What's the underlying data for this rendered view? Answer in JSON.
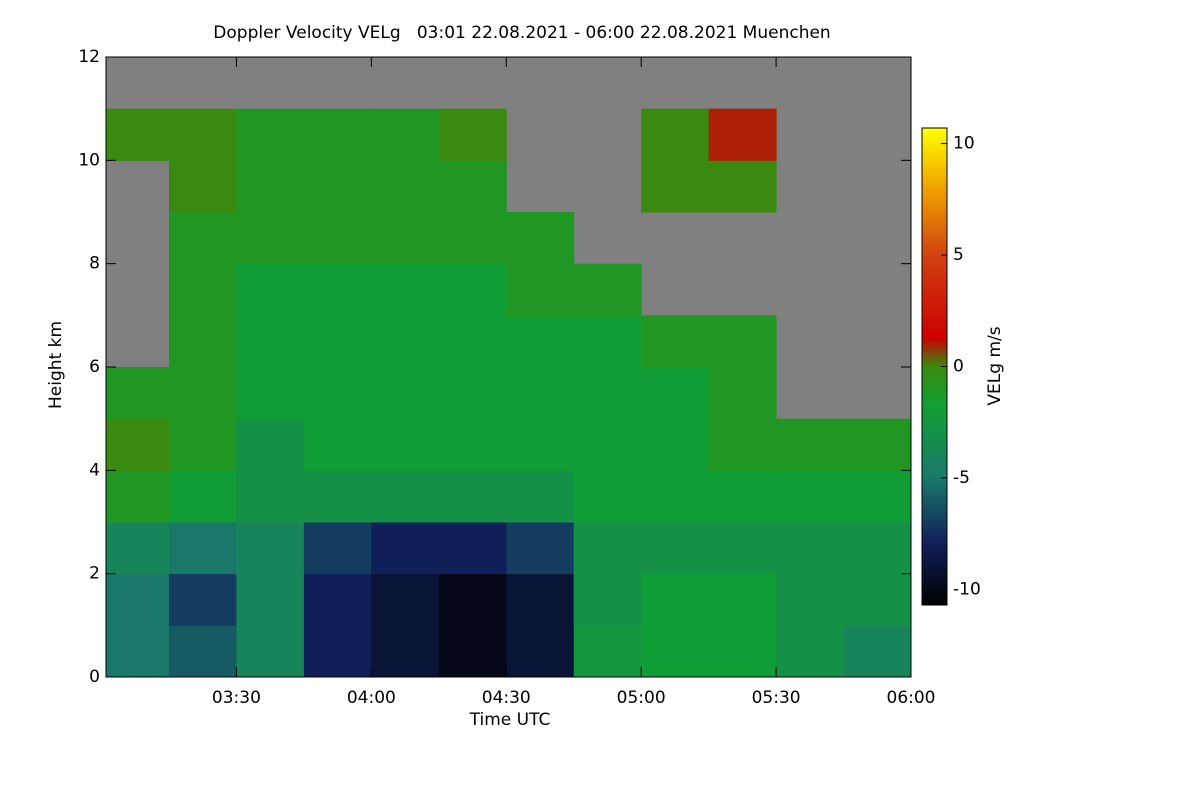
{
  "chart_data": {
    "type": "heatmap",
    "title": "Doppler Velocity VELg   03:01 22.08.2021 - 06:00 22.08.2021 Muenchen",
    "x_label": "Time UTC",
    "y_label": "Height km",
    "colorbar_label": "VELg m/s",
    "xlim": [
      "03:01",
      "06:00"
    ],
    "xticks": [
      "03:30",
      "04:00",
      "04:30",
      "05:00",
      "05:30",
      "06:00"
    ],
    "ylim": [
      0,
      12
    ],
    "yticks": [
      0,
      2,
      4,
      6,
      8,
      10,
      12
    ],
    "zlim": [
      -10.7,
      10.7
    ],
    "zticks": [
      -10,
      -5,
      0,
      5,
      10
    ],
    "x_bins": [
      "03:01",
      "03:15",
      "03:30",
      "03:45",
      "04:00",
      "04:15",
      "04:30",
      "04:45",
      "05:00",
      "05:15",
      "05:30",
      "05:45",
      "06:00"
    ],
    "y_bins": [
      0,
      1,
      2,
      3,
      4,
      5,
      6,
      7,
      8,
      9,
      10,
      11,
      12
    ],
    "z": [
      [
        -5,
        -6,
        -4,
        -8,
        -9,
        -10,
        -9,
        -2.5,
        -2,
        -2,
        -3,
        -4
      ],
      [
        -5,
        -7,
        -4,
        -8,
        -9,
        -10,
        -9,
        -3,
        -2,
        -2,
        -3,
        -3
      ],
      [
        -4,
        -5,
        -4,
        -7,
        -8,
        -8,
        -7,
        -3,
        -3,
        -3,
        -3,
        -3
      ],
      [
        -1,
        -2,
        -3,
        -3,
        -3,
        -3,
        -3,
        -2,
        -2,
        -2,
        -2,
        -2
      ],
      [
        0,
        -1,
        -3,
        -2,
        -2,
        -2,
        -2,
        -2,
        -2,
        -1,
        -1,
        -1
      ],
      [
        -1,
        -1,
        -2,
        -2,
        -2,
        -2,
        -2,
        -2,
        -2,
        -1,
        null,
        null
      ],
      [
        null,
        -1,
        -2,
        -2,
        -2,
        -2,
        -2,
        -2,
        -1,
        -1,
        null,
        null
      ],
      [
        null,
        -1,
        -2,
        -2,
        -2,
        -2,
        -1,
        -1,
        null,
        null,
        null,
        null
      ],
      [
        null,
        -1,
        -1,
        -1,
        -1,
        -1,
        -1,
        null,
        null,
        null,
        null,
        null
      ],
      [
        null,
        0,
        -1,
        -1,
        -1,
        -1,
        null,
        null,
        0,
        0,
        null,
        null
      ],
      [
        0,
        0,
        -1,
        -1,
        -1,
        0,
        null,
        null,
        0,
        1,
        null,
        null
      ],
      [
        null,
        null,
        null,
        null,
        null,
        null,
        null,
        null,
        null,
        null,
        null,
        null
      ]
    ],
    "missing_color": "#808080"
  }
}
